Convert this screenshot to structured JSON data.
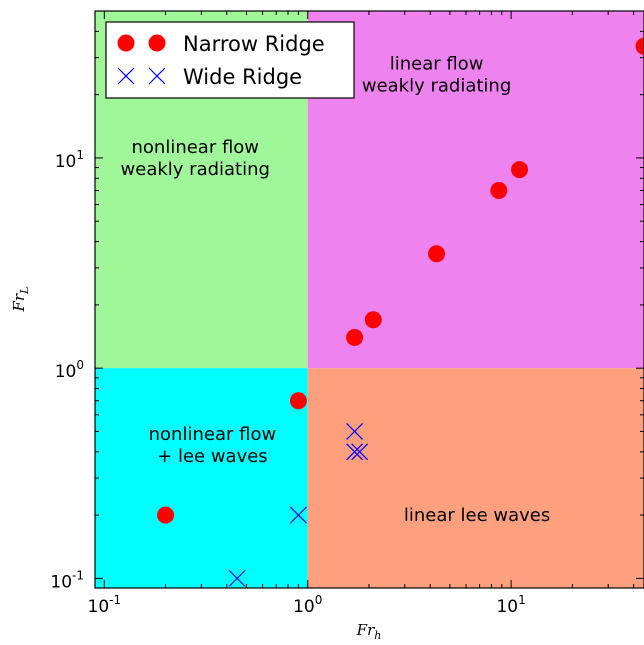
{
  "chart_data": {
    "type": "scatter",
    "xscale": "log",
    "yscale": "log",
    "xlim": [
      0.09,
      45
    ],
    "ylim": [
      0.09,
      50
    ],
    "xlabel": "Fr",
    "xlabel_sub": "h",
    "ylabel": "Fr",
    "ylabel_sub": "L",
    "x_ticks": [
      {
        "value": 0.1,
        "base": "10",
        "exp": "-1"
      },
      {
        "value": 1,
        "base": "10",
        "exp": "0"
      },
      {
        "value": 10,
        "base": "10",
        "exp": "1"
      }
    ],
    "y_ticks": [
      {
        "value": 0.1,
        "base": "10",
        "exp": "-1"
      },
      {
        "value": 1,
        "base": "10",
        "exp": "0"
      },
      {
        "value": 10,
        "base": "10",
        "exp": "1"
      }
    ],
    "regions": [
      {
        "x0": 0.09,
        "x1": 1,
        "y0": 1,
        "y1": 50,
        "color": "#a0f79a",
        "label": [
          "nonlinear flow",
          "weakly radiating"
        ],
        "label_at": [
          0.28,
          10
        ]
      },
      {
        "x0": 1,
        "x1": 45,
        "y0": 1,
        "y1": 50,
        "color": "#ee82ee",
        "label": [
          "linear flow",
          "weakly radiating"
        ],
        "label_at": [
          4.3,
          25
        ]
      },
      {
        "x0": 0.09,
        "x1": 1,
        "y0": 0.09,
        "y1": 1,
        "color": "#00ffff",
        "label": [
          "nonlinear flow",
          "+ lee waves"
        ],
        "label_at": [
          0.34,
          0.43
        ]
      },
      {
        "x0": 1,
        "x1": 45,
        "y0": 0.09,
        "y1": 1,
        "color": "#fea07e",
        "label": [
          "linear lee waves"
        ],
        "label_at": [
          6.8,
          0.2
        ]
      }
    ],
    "series": [
      {
        "name": "Narrow Ridge",
        "marker": "circle",
        "color": "#ff0000",
        "points": [
          [
            0.2,
            0.2
          ],
          [
            0.9,
            0.7
          ],
          [
            1.7,
            1.4
          ],
          [
            2.1,
            1.7
          ],
          [
            4.3,
            3.5
          ],
          [
            8.7,
            7
          ],
          [
            11,
            8.8
          ],
          [
            45,
            34
          ]
        ]
      },
      {
        "name": "Wide Ridge",
        "marker": "x",
        "color": "#0000ff",
        "points": [
          [
            0.45,
            0.1
          ],
          [
            0.9,
            0.2
          ],
          [
            1.7,
            0.5
          ],
          [
            1.7,
            0.4
          ],
          [
            1.8,
            0.4
          ]
        ]
      }
    ],
    "legend": {
      "position": "upper-left",
      "text_color": "#000000"
    }
  }
}
